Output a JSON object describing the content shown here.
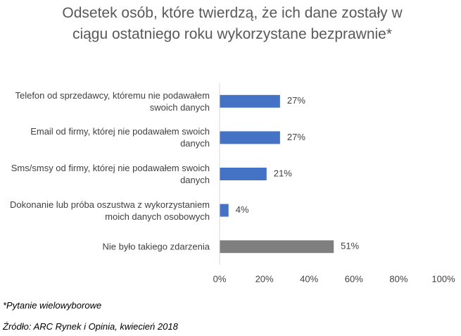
{
  "chart_data": {
    "type": "bar",
    "orientation": "horizontal",
    "title": "Odsetek osób, które twierdzą, że ich dane zostały w ciągu ostatniego roku wykorzystane bezprawnie*",
    "categories": [
      "Telefon od sprzedawcy, któremu nie podawałem swoich danych",
      "Email od firmy, której nie podawałem swoich danych",
      "Sms/smsy od firmy, której nie podawałem swoich danych",
      "Dokonanie lub próba oszustwa z wykorzystaniem moich danych osobowych",
      "Nie było takiego zdarzenia"
    ],
    "values": [
      27,
      27,
      21,
      4,
      51
    ],
    "value_labels": [
      "27%",
      "27%",
      "21%",
      "4%",
      "51%"
    ],
    "colors": [
      "#4472c4",
      "#4472c4",
      "#4472c4",
      "#4472c4",
      "#7f7f7f"
    ],
    "xlim": [
      0,
      100
    ],
    "xticks": [
      {
        "value": 0,
        "label": "0%"
      },
      {
        "value": 20,
        "label": "20%"
      },
      {
        "value": 40,
        "label": "40%"
      },
      {
        "value": 60,
        "label": "60%"
      },
      {
        "value": 80,
        "label": "80%"
      },
      {
        "value": 100,
        "label": "100%"
      }
    ],
    "notes": [
      "*Pytanie wielowyborowe",
      "Źródło: ARC Rynek i Opinia, kwiecień 2018"
    ]
  }
}
